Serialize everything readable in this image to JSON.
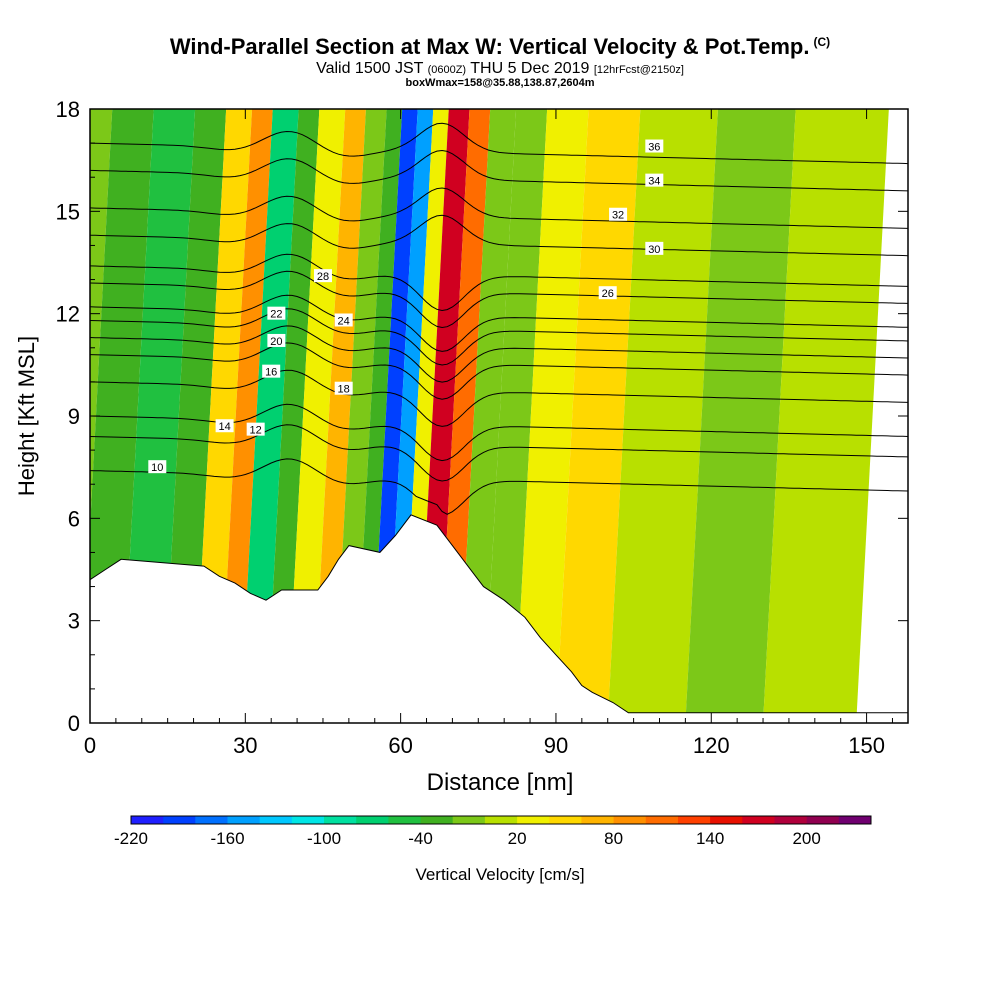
{
  "header": {
    "title": "Wind-Parallel Section at Max W: Vertical Velocity & Pot.Temp.",
    "copyright": "(C)",
    "valid_part1": "Valid 1500 JST",
    "valid_utc": "(0600Z)",
    "valid_part2": "THU 5 Dec 2019",
    "forecast_tag": "[12hrFcst@2150z]",
    "box_info": "boxWmax=158@35.88,138.87,2604m"
  },
  "chart_data": {
    "type": "heatmap",
    "xlabel": "Distance [nm]",
    "ylabel": "Height [Kft MSL]",
    "xlim": [
      0,
      158
    ],
    "ylim": [
      0,
      18
    ],
    "xticks": [
      0,
      30,
      60,
      90,
      120,
      150
    ],
    "yticks": [
      0,
      3,
      6,
      9,
      12,
      15,
      18
    ],
    "colorbar": {
      "label": "Vertical Velocity [cm/s]",
      "tick_labels": [
        "-220",
        "-160",
        "-100",
        "-40",
        "20",
        "80",
        "140",
        "200"
      ],
      "tick_values": [
        -220,
        -160,
        -100,
        -40,
        20,
        80,
        140,
        200
      ],
      "levels": [
        -220,
        -200,
        -180,
        -160,
        -140,
        -120,
        -100,
        -80,
        -60,
        -40,
        -20,
        0,
        20,
        40,
        60,
        80,
        100,
        120,
        140,
        160,
        180,
        200,
        220,
        240
      ],
      "colors": [
        "#1f1fff",
        "#0040ff",
        "#0070ff",
        "#00a0ff",
        "#00c8ff",
        "#00e6e6",
        "#00e0a0",
        "#00d070",
        "#20c040",
        "#40b020",
        "#7cc818",
        "#b8e000",
        "#f0f000",
        "#ffd800",
        "#ffb400",
        "#ff9000",
        "#ff6c00",
        "#ff4000",
        "#e81000",
        "#d00020",
        "#b0003c",
        "#900050",
        "#700070"
      ]
    },
    "velocity_bands": [
      {
        "x": 0,
        "w": -15
      },
      {
        "x": 8,
        "w": -40
      },
      {
        "x": 16,
        "w": -60
      },
      {
        "x": 24,
        "w": -40
      },
      {
        "x": 30,
        "w": 40
      },
      {
        "x": 35,
        "w": 90
      },
      {
        "x": 39,
        "w": -70
      },
      {
        "x": 44,
        "w": -30
      },
      {
        "x": 48,
        "w": 20
      },
      {
        "x": 53,
        "w": 60
      },
      {
        "x": 57,
        "w": -20
      },
      {
        "x": 61,
        "w": -40
      },
      {
        "x": 64,
        "w": -200
      },
      {
        "x": 67,
        "w": -150
      },
      {
        "x": 70,
        "w": 20
      },
      {
        "x": 73,
        "w": 160
      },
      {
        "x": 77,
        "w": 100
      },
      {
        "x": 81,
        "w": -20
      },
      {
        "x": 86,
        "w": -10
      },
      {
        "x": 92,
        "w": 20
      },
      {
        "x": 100,
        "w": 40
      },
      {
        "x": 110,
        "w": 10
      },
      {
        "x": 125,
        "w": -10
      },
      {
        "x": 140,
        "w": 10
      },
      {
        "x": 158,
        "w": 5
      }
    ],
    "terrain_kft": [
      [
        0,
        4.2
      ],
      [
        3,
        4.5
      ],
      [
        6,
        4.8
      ],
      [
        22,
        4.6
      ],
      [
        25,
        4.3
      ],
      [
        28,
        4.1
      ],
      [
        31,
        3.8
      ],
      [
        34,
        3.6
      ],
      [
        37,
        3.9
      ],
      [
        44,
        3.9
      ],
      [
        46,
        4.3
      ],
      [
        48,
        4.8
      ],
      [
        50,
        5.2
      ],
      [
        56,
        5.0
      ],
      [
        59,
        5.5
      ],
      [
        62,
        6.1
      ],
      [
        67,
        5.8
      ],
      [
        70,
        5.2
      ],
      [
        74,
        4.4
      ],
      [
        76,
        4.0
      ],
      [
        80,
        3.6
      ],
      [
        84,
        3.1
      ],
      [
        87,
        2.5
      ],
      [
        90,
        2.0
      ],
      [
        93,
        1.5
      ],
      [
        95,
        1.1
      ],
      [
        97,
        0.9
      ],
      [
        101,
        0.6
      ],
      [
        104,
        0.3
      ],
      [
        158,
        0.3
      ]
    ],
    "theta_contours": [
      {
        "label": "10",
        "base_kft": 7.4,
        "lx": 13,
        "ly": 7.5
      },
      {
        "label": "12",
        "base_kft": 8.4,
        "lx": 32,
        "ly": 8.6
      },
      {
        "label": "14",
        "base_kft": 9.0,
        "lx": 26,
        "ly": 8.7
      },
      {
        "label": "16",
        "base_kft": 10.0,
        "lx": 35,
        "ly": 10.3
      },
      {
        "label": "18",
        "base_kft": 10.8,
        "lx": 49,
        "ly": 9.8
      },
      {
        "label": "20",
        "base_kft": 11.3,
        "lx": 36,
        "ly": 11.2
      },
      {
        "label": "22",
        "base_kft": 11.8,
        "lx": 36,
        "ly": 12.0
      },
      {
        "label": "24",
        "base_kft": 12.2,
        "lx": 49,
        "ly": 11.8
      },
      {
        "label": "26",
        "base_kft": 12.9,
        "lx": 100,
        "ly": 12.6
      },
      {
        "label": "28",
        "base_kft": 13.4,
        "lx": 45,
        "ly": 13.1
      },
      {
        "label": "30",
        "base_kft": 14.3,
        "lx": 109,
        "ly": 13.9
      },
      {
        "label": "32",
        "base_kft": 15.1,
        "lx": 102,
        "ly": 14.9
      },
      {
        "label": "34",
        "base_kft": 16.2,
        "lx": 109,
        "ly": 15.9
      },
      {
        "label": "36",
        "base_kft": 17.0,
        "lx": 109,
        "ly": 16.9
      }
    ]
  }
}
